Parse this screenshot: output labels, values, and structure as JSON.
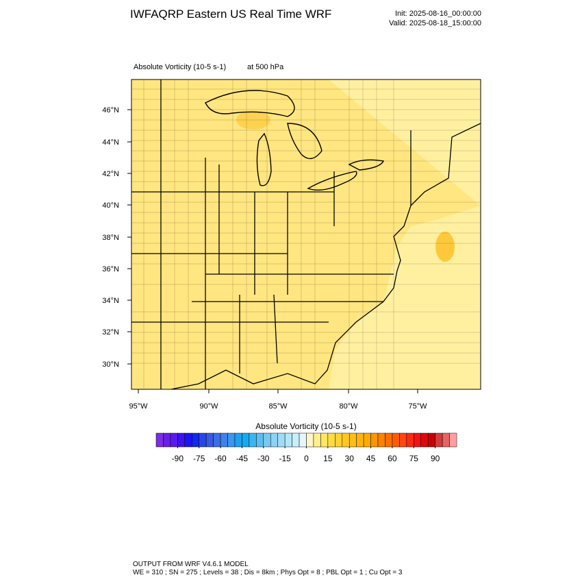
{
  "header": {
    "title": "IWFAQRP Eastern US Real Time WRF",
    "init": "Init: 2025-08-16_00:00:00",
    "valid": "Valid: 2025-08-18_15:00:00"
  },
  "map": {
    "field_label": "Absolute Vorticity   (10-5 s-1)",
    "level": "at   500 hPa",
    "lat_labels": [
      "46°N",
      "44°N",
      "42°N",
      "40°N",
      "38°N",
      "36°N",
      "34°N",
      "32°N",
      "30°N"
    ],
    "lon_labels": [
      "95°W",
      "90°W",
      "85°W",
      "80°W",
      "75°W"
    ]
  },
  "colorbar": {
    "title": "Absolute Vorticity  (10-5 s-1)",
    "range": [
      -105,
      105
    ],
    "ticks": [
      -90,
      -75,
      -60,
      -45,
      -30,
      -15,
      0,
      15,
      30,
      45,
      60,
      75,
      90
    ],
    "colors": [
      "#7b2fe0",
      "#6a1fe6",
      "#5a1aef",
      "#3c14f0",
      "#1e14f0",
      "#1428f0",
      "#2846e6",
      "#3a5ae0",
      "#3c6ee6",
      "#3c82ea",
      "#3c96f0",
      "#1ea0f0",
      "#14aaf0",
      "#3cb4f0",
      "#5abef0",
      "#78c8f0",
      "#8cd2f5",
      "#a0dcf5",
      "#b4e6fa",
      "#c8eefa",
      "#e6f6fc",
      "#fff5c8",
      "#fff08c",
      "#ffe664",
      "#ffdc46",
      "#ffd232",
      "#ffc81e",
      "#ffbe14",
      "#ffb40a",
      "#ffaa00",
      "#ff9600",
      "#ff8200",
      "#ff6e00",
      "#ff5a00",
      "#ff4614",
      "#ff2814",
      "#f01414",
      "#dc0a0a",
      "#c80000",
      "#d23c3c",
      "#e66464",
      "#ffa0a0"
    ]
  },
  "footer": {
    "line1": "OUTPUT FROM WRF V4.6.1 MODEL",
    "line2": "WE = 310 ; SN = 275 ; Levels = 38 ; Dis = 8km ; Phys Opt = 8 ; PBL Opt = 1 ; Cu Opt = 3"
  }
}
